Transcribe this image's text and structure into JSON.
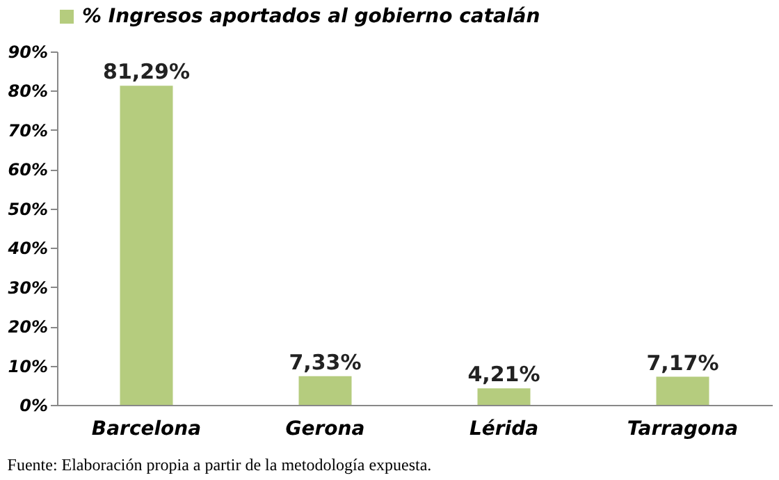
{
  "chart_data": {
    "type": "bar",
    "categories": [
      "Barcelona",
      "Gerona",
      "Lérida",
      "Tarragona"
    ],
    "series": [
      {
        "name": "% Ingresos aportados al gobierno catalán",
        "color": "#b5cc7e",
        "values": [
          81.29,
          7.33,
          4.21,
          7.17
        ],
        "value_labels": [
          "81,29%",
          "7,33%",
          "4,21%",
          "7,17%"
        ]
      }
    ],
    "ylim": [
      0,
      90
    ],
    "yticks": [
      {
        "value": 0,
        "label": "0%"
      },
      {
        "value": 10,
        "label": "10%"
      },
      {
        "value": 20,
        "label": "20%"
      },
      {
        "value": 30,
        "label": "30%"
      },
      {
        "value": 40,
        "label": "40%"
      },
      {
        "value": 50,
        "label": "50%"
      },
      {
        "value": 60,
        "label": "60%"
      },
      {
        "value": 70,
        "label": "70%"
      },
      {
        "value": 80,
        "label": "80%"
      },
      {
        "value": 90,
        "label": "90%"
      }
    ],
    "grid": false,
    "legend": "top",
    "annotations": [
      "Fuente: Elaboración propia a partir de la metodología expuesta."
    ]
  }
}
